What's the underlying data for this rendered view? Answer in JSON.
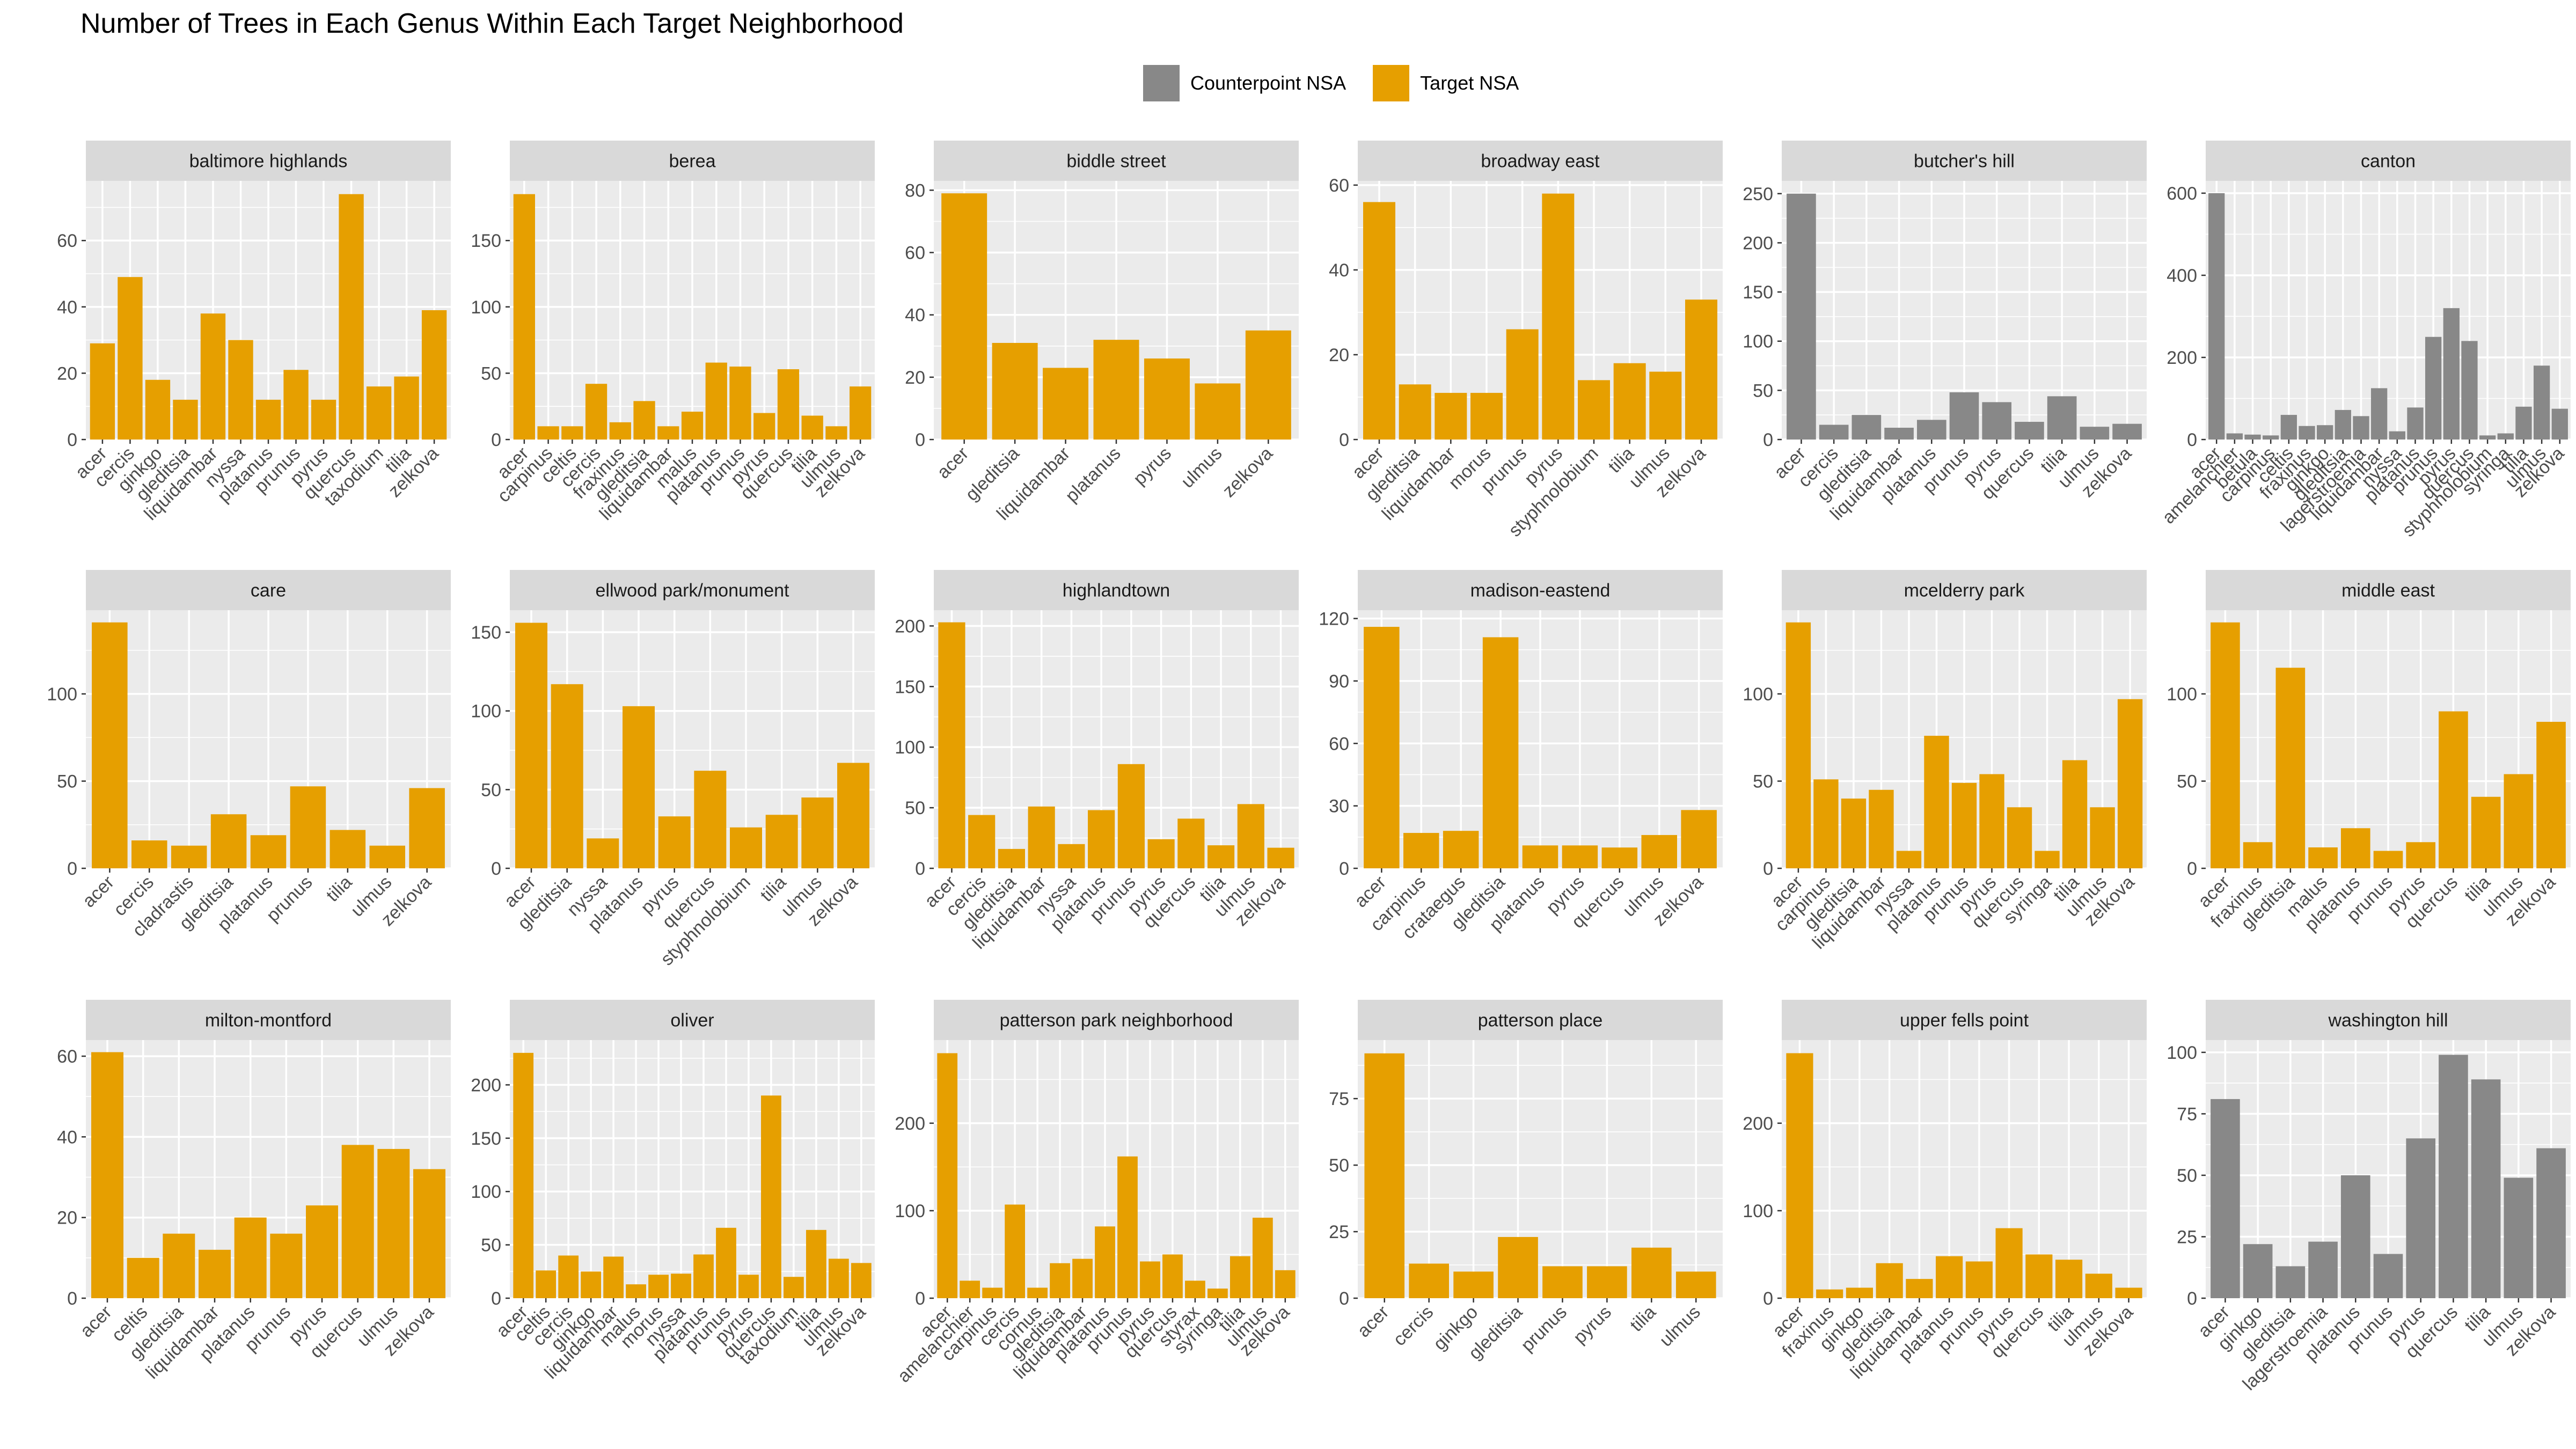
{
  "title": "Number of Trees in Each Genus Within Each Target Neighborhood",
  "legend": [
    {
      "label": "Counterpoint NSA",
      "color": "#888888"
    },
    {
      "label": "Target NSA",
      "color": "#E69F00"
    }
  ],
  "chart_data": {
    "type": "bar",
    "title": "Number of Trees in Each Genus Within Each Target Neighborhood",
    "xlabel": "",
    "ylabel": "",
    "grid": true,
    "legend_position": "top",
    "facets": [
      {
        "name": "baltimore highlands",
        "group": "Target NSA",
        "yticks": [
          0,
          20,
          40,
          60
        ],
        "ylim": [
          0,
          78
        ],
        "categories": [
          "acer",
          "cercis",
          "ginkgo",
          "gleditsia",
          "liquidambar",
          "nyssa",
          "platanus",
          "prunus",
          "pyrus",
          "quercus",
          "taxodium",
          "tilia",
          "zelkova"
        ],
        "values": [
          29,
          49,
          18,
          12,
          38,
          30,
          12,
          21,
          12,
          74,
          16,
          19,
          39
        ]
      },
      {
        "name": "berea",
        "group": "Target NSA",
        "yticks": [
          0,
          50,
          100,
          150
        ],
        "ylim": [
          0,
          195
        ],
        "categories": [
          "acer",
          "carpinus",
          "celtis",
          "cercis",
          "fraxinus",
          "gleditsia",
          "liquidambar",
          "malus",
          "platanus",
          "prunus",
          "pyrus",
          "quercus",
          "tilia",
          "ulmus",
          "zelkova"
        ],
        "values": [
          185,
          10,
          10,
          42,
          13,
          29,
          10,
          21,
          58,
          55,
          20,
          53,
          18,
          10,
          40
        ]
      },
      {
        "name": "biddle street",
        "group": "Target NSA",
        "yticks": [
          0,
          20,
          40,
          60,
          80
        ],
        "ylim": [
          0,
          83
        ],
        "categories": [
          "acer",
          "gleditsia",
          "liquidambar",
          "platanus",
          "pyrus",
          "ulmus",
          "zelkova"
        ],
        "values": [
          79,
          31,
          23,
          32,
          26,
          18,
          35
        ]
      },
      {
        "name": "broadway east",
        "group": "Target NSA",
        "yticks": [
          0,
          20,
          40,
          60
        ],
        "ylim": [
          0,
          61
        ],
        "categories": [
          "acer",
          "gleditsia",
          "liquidambar",
          "morus",
          "prunus",
          "pyrus",
          "styphnolobium",
          "tilia",
          "ulmus",
          "zelkova"
        ],
        "values": [
          56,
          13,
          11,
          11,
          26,
          58,
          14,
          18,
          16,
          33
        ]
      },
      {
        "name": "butcher's hill",
        "group": "Counterpoint NSA",
        "yticks": [
          0,
          50,
          100,
          150,
          200,
          250
        ],
        "ylim": [
          0,
          263
        ],
        "categories": [
          "acer",
          "cercis",
          "gleditsia",
          "liquidambar",
          "platanus",
          "prunus",
          "pyrus",
          "quercus",
          "tilia",
          "ulmus",
          "zelkova"
        ],
        "values": [
          250,
          15,
          25,
          12,
          20,
          48,
          38,
          18,
          44,
          13,
          16
        ]
      },
      {
        "name": "canton",
        "group": "Counterpoint NSA",
        "yticks": [
          0,
          200,
          400,
          600
        ],
        "ylim": [
          0,
          630
        ],
        "categories": [
          "acer",
          "amelanchier",
          "betula",
          "carpinus",
          "celtis",
          "fraxinus",
          "ginkgo",
          "gleditsia",
          "lagerstroemia",
          "liquidambar",
          "nyssa",
          "platanus",
          "prunus",
          "pyrus",
          "quercus",
          "styphnolobium",
          "syringa",
          "tilia",
          "ulmus",
          "zelkova"
        ],
        "values": [
          600,
          15,
          12,
          10,
          60,
          33,
          35,
          72,
          57,
          125,
          20,
          78,
          250,
          320,
          240,
          10,
          15,
          80,
          180,
          75
        ]
      },
      {
        "name": "care",
        "group": "Target NSA",
        "yticks": [
          0,
          50,
          100
        ],
        "ylim": [
          0,
          148
        ],
        "categories": [
          "acer",
          "cercis",
          "cladrastis",
          "gleditsia",
          "platanus",
          "prunus",
          "tilia",
          "ulmus",
          "zelkova"
        ],
        "values": [
          141,
          16,
          13,
          31,
          19,
          47,
          22,
          13,
          46
        ]
      },
      {
        "name": "ellwood park/monument",
        "group": "Target NSA",
        "yticks": [
          0,
          50,
          100,
          150
        ],
        "ylim": [
          0,
          164
        ],
        "categories": [
          "acer",
          "gleditsia",
          "nyssa",
          "platanus",
          "pyrus",
          "quercus",
          "styphnolobium",
          "tilia",
          "ulmus",
          "zelkova"
        ],
        "values": [
          156,
          117,
          19,
          103,
          33,
          62,
          26,
          34,
          45,
          67
        ]
      },
      {
        "name": "highlandtown",
        "group": "Target NSA",
        "yticks": [
          0,
          50,
          100,
          150,
          200
        ],
        "ylim": [
          0,
          213
        ],
        "categories": [
          "acer",
          "cercis",
          "gleditsia",
          "liquidambar",
          "nyssa",
          "platanus",
          "prunus",
          "pyrus",
          "quercus",
          "tilia",
          "ulmus",
          "zelkova"
        ],
        "values": [
          203,
          44,
          16,
          51,
          20,
          48,
          86,
          24,
          41,
          19,
          53,
          17
        ]
      },
      {
        "name": "madison-eastend",
        "group": "Target NSA",
        "yticks": [
          0,
          30,
          60,
          90,
          120
        ],
        "ylim": [
          0,
          124
        ],
        "categories": [
          "acer",
          "carpinus",
          "crataegus",
          "gleditsia",
          "platanus",
          "pyrus",
          "quercus",
          "ulmus",
          "zelkova"
        ],
        "values": [
          116,
          17,
          18,
          111,
          11,
          11,
          10,
          16,
          28
        ]
      },
      {
        "name": "mcelderry park",
        "group": "Target NSA",
        "yticks": [
          0,
          50,
          100
        ],
        "ylim": [
          0,
          148
        ],
        "categories": [
          "acer",
          "carpinus",
          "gleditsia",
          "liquidambar",
          "nyssa",
          "platanus",
          "prunus",
          "pyrus",
          "quercus",
          "syringa",
          "tilia",
          "ulmus",
          "zelkova"
        ],
        "values": [
          141,
          51,
          40,
          45,
          10,
          76,
          49,
          54,
          35,
          10,
          62,
          35,
          97
        ]
      },
      {
        "name": "middle east",
        "group": "Target NSA",
        "yticks": [
          0,
          50,
          100
        ],
        "ylim": [
          0,
          148
        ],
        "categories": [
          "acer",
          "fraxinus",
          "gleditsia",
          "malus",
          "platanus",
          "prunus",
          "pyrus",
          "quercus",
          "tilia",
          "ulmus",
          "zelkova"
        ],
        "values": [
          141,
          15,
          115,
          12,
          23,
          10,
          15,
          90,
          41,
          54,
          84
        ]
      },
      {
        "name": "milton-montford",
        "group": "Target NSA",
        "yticks": [
          0,
          20,
          40,
          60
        ],
        "ylim": [
          0,
          64
        ],
        "categories": [
          "acer",
          "celtis",
          "gleditsia",
          "liquidambar",
          "platanus",
          "prunus",
          "pyrus",
          "quercus",
          "ulmus",
          "zelkova"
        ],
        "values": [
          61,
          10,
          16,
          12,
          20,
          16,
          23,
          38,
          37,
          32
        ]
      },
      {
        "name": "oliver",
        "group": "Target NSA",
        "yticks": [
          0,
          50,
          100,
          150,
          200
        ],
        "ylim": [
          0,
          242
        ],
        "categories": [
          "acer",
          "celtis",
          "cercis",
          "ginkgo",
          "liquidambar",
          "malus",
          "morus",
          "nyssa",
          "platanus",
          "prunus",
          "pyrus",
          "quercus",
          "taxodium",
          "tilia",
          "ulmus",
          "zelkova"
        ],
        "values": [
          230,
          26,
          40,
          25,
          39,
          13,
          22,
          23,
          41,
          66,
          22,
          190,
          20,
          64,
          37,
          33
        ]
      },
      {
        "name": "patterson park neighborhood",
        "group": "Target NSA",
        "yticks": [
          0,
          100,
          200
        ],
        "ylim": [
          0,
          295
        ],
        "categories": [
          "acer",
          "amelanchier",
          "carpinus",
          "cercis",
          "cornus",
          "gleditsia",
          "liquidambar",
          "platanus",
          "prunus",
          "pyrus",
          "quercus",
          "styrax",
          "syringa",
          "tilia",
          "ulmus",
          "zelkova"
        ],
        "values": [
          280,
          20,
          12,
          107,
          12,
          40,
          45,
          82,
          162,
          42,
          50,
          20,
          11,
          48,
          92,
          32
        ]
      },
      {
        "name": "patterson place",
        "group": "Target NSA",
        "yticks": [
          0,
          25,
          50,
          75
        ],
        "ylim": [
          0,
          97
        ],
        "categories": [
          "acer",
          "cercis",
          "ginkgo",
          "gleditsia",
          "prunus",
          "pyrus",
          "tilia",
          "ulmus"
        ],
        "values": [
          92,
          13,
          10,
          23,
          12,
          12,
          19,
          10
        ]
      },
      {
        "name": "upper fells point",
        "group": "Target NSA",
        "yticks": [
          0,
          100,
          200
        ],
        "ylim": [
          0,
          295
        ],
        "categories": [
          "acer",
          "fraxinus",
          "ginkgo",
          "gleditsia",
          "liquidambar",
          "platanus",
          "prunus",
          "pyrus",
          "quercus",
          "tilia",
          "ulmus",
          "zelkova"
        ],
        "values": [
          280,
          10,
          12,
          40,
          22,
          48,
          42,
          80,
          50,
          44,
          28,
          12
        ]
      },
      {
        "name": "washington hill",
        "group": "Counterpoint NSA",
        "yticks": [
          0,
          25,
          50,
          75,
          100
        ],
        "ylim": [
          0,
          105
        ],
        "categories": [
          "acer",
          "ginkgo",
          "gleditsia",
          "lagerstroemia",
          "platanus",
          "prunus",
          "pyrus",
          "quercus",
          "tilia",
          "ulmus",
          "zelkova"
        ],
        "values": [
          81,
          22,
          13,
          23,
          50,
          18,
          65,
          99,
          89,
          49,
          61
        ]
      }
    ]
  }
}
